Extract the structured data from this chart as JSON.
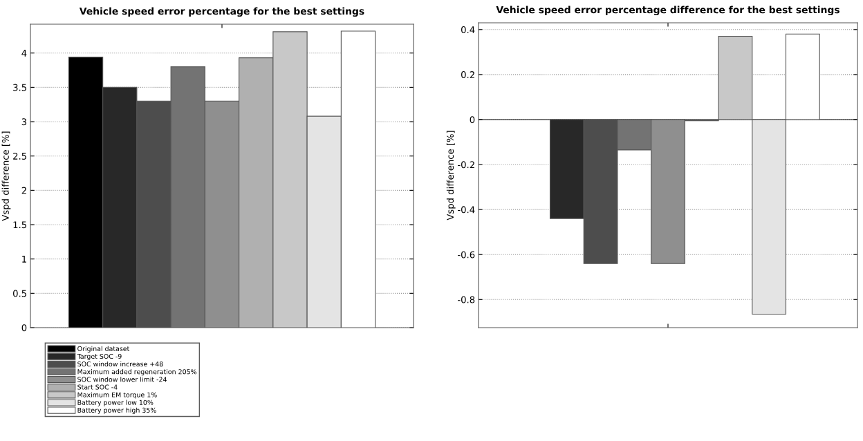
{
  "chart_data": [
    {
      "type": "bar",
      "title": "Vehicle speed error percentage for the best settings",
      "ylabel": "Vspd difference [%]",
      "categories": [
        null
      ],
      "series": [
        {
          "name": "Original dataset",
          "color": "#000000",
          "values": [
            3.94
          ]
        },
        {
          "name": "Target SOC -9",
          "color": "#282828",
          "values": [
            3.5
          ]
        },
        {
          "name": "SOC window increase +48",
          "color": "#4d4d4d",
          "values": [
            3.3
          ]
        },
        {
          "name": "Maximum added regeneration 205%",
          "color": "#737373",
          "values": [
            3.8
          ]
        },
        {
          "name": "SOC window lower limit -24",
          "color": "#8f8f8f",
          "values": [
            3.3
          ]
        },
        {
          "name": "Start SOC -4",
          "color": "#b0b0b0",
          "values": [
            3.93
          ]
        },
        {
          "name": "Maximum EM torque 1%",
          "color": "#c8c8c8",
          "values": [
            4.31
          ]
        },
        {
          "name": "Battery power low 10%",
          "color": "#e4e4e4",
          "values": [
            3.08
          ]
        },
        {
          "name": "Battery power high 35%",
          "color": "#ffffff",
          "values": [
            4.32
          ]
        }
      ],
      "ylim": [
        0,
        4.42
      ],
      "yticks": [
        0,
        0.5,
        1,
        1.5,
        2,
        2.5,
        3,
        3.5,
        4
      ],
      "grid": "y",
      "legend": "bottom left",
      "tick_labels": "y"
    },
    {
      "type": "bar",
      "title": "Vehicle speed error percentage difference for the best settings",
      "ylabel": "Vspd difference [%]",
      "categories": [
        null
      ],
      "series": [
        {
          "color": "#000000",
          "values": [
            0
          ]
        },
        {
          "color": "#282828",
          "values": [
            -0.44
          ]
        },
        {
          "color": "#4d4d4d",
          "values": [
            -0.64
          ]
        },
        {
          "color": "#737373",
          "values": [
            -0.135
          ]
        },
        {
          "color": "#8f8f8f",
          "values": [
            -0.64
          ]
        },
        {
          "color": "#b0b0b0",
          "values": [
            -0.005
          ]
        },
        {
          "color": "#c8c8c8",
          "values": [
            0.37
          ]
        },
        {
          "color": "#e4e4e4",
          "values": [
            -0.865
          ]
        },
        {
          "color": "#ffffff",
          "values": [
            0.38
          ]
        }
      ],
      "ylim": [
        -0.925,
        0.43
      ],
      "yticks": [
        -0.8,
        -0.6,
        -0.4,
        -0.2,
        0,
        0.2,
        0.4
      ],
      "grid": "y",
      "tick_labels": "y",
      "ref_lines": [
        {
          "axis": "y",
          "value": 0,
          "color": "#000000"
        }
      ]
    }
  ]
}
